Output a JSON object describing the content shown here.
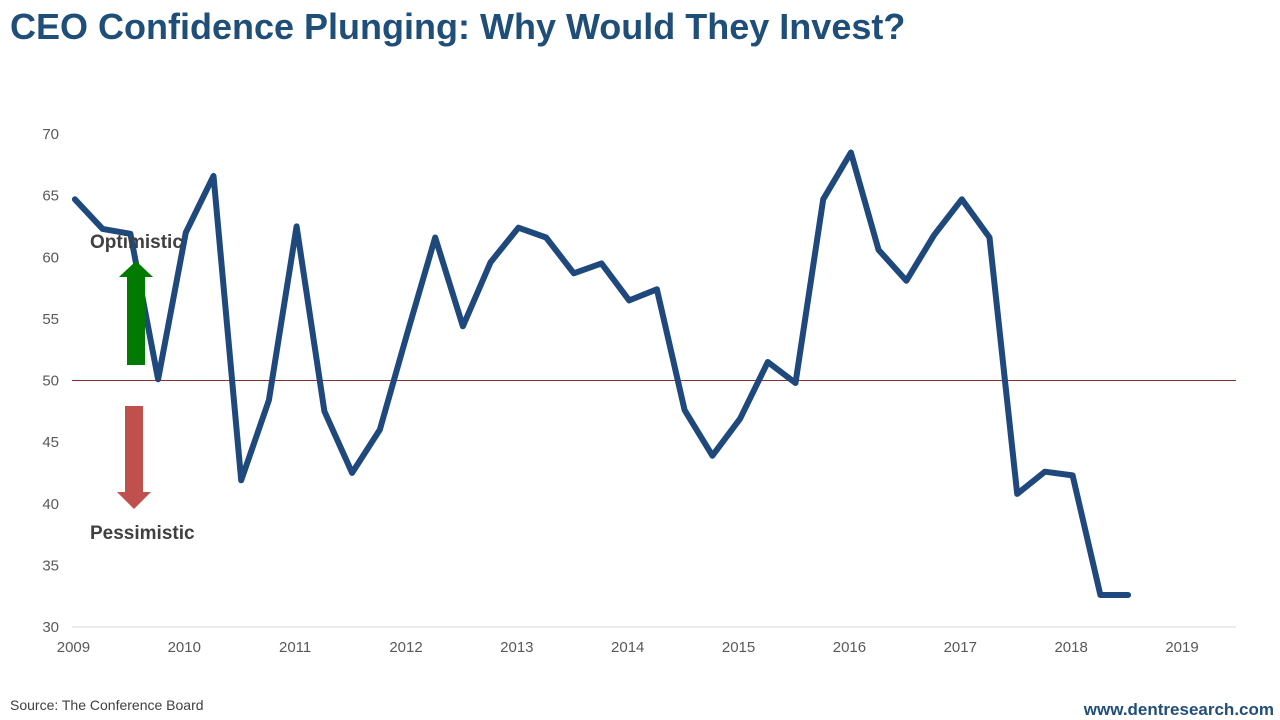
{
  "title": "CEO Confidence Plunging: Why Would They Invest?",
  "source": "Source: The Conference Board",
  "website": "www.dentresearch.com",
  "colors": {
    "title": "#1f4e79",
    "line": "#1f497d",
    "reference_line": "#8b2e2e",
    "up_arrow": "#007a00",
    "down_arrow": "#c0504d"
  },
  "chart_data": {
    "type": "line",
    "title": "CEO Confidence Plunging: Why Would They Invest?",
    "xlabel": "",
    "ylabel": "",
    "categories": [
      "2009",
      "2010",
      "2011",
      "2012",
      "2013",
      "2014",
      "2015",
      "2016",
      "2017",
      "2018",
      "2019"
    ],
    "xlim": [
      2009,
      2019.5
    ],
    "ylim": [
      30,
      70
    ],
    "yticks": [
      30,
      35,
      40,
      45,
      50,
      55,
      60,
      65,
      70
    ],
    "reference_line": 50,
    "grid": false,
    "series": [
      {
        "name": "CEO Confidence",
        "x": [
          2009.5,
          2009.75,
          2010.0,
          2010.25,
          2010.5,
          2010.75,
          2011.0,
          2011.25,
          2011.5,
          2011.75,
          2012.0,
          2012.25,
          2012.5,
          2012.75,
          2013.0,
          2013.25,
          2013.5,
          2013.75,
          2014.0,
          2014.25,
          2014.5,
          2014.75,
          2015.0,
          2015.25,
          2015.5,
          2015.75,
          2016.0,
          2016.25,
          2016.5,
          2016.75,
          2017.0,
          2017.25,
          2017.5,
          2017.75,
          2018.0,
          2018.25,
          2018.5,
          2018.75,
          2019.0
        ],
        "y": [
          64.7,
          62.3,
          61.9,
          50.1,
          62.0,
          66.6,
          41.9,
          48.4,
          62.5,
          47.5,
          42.5,
          46.0,
          53.9,
          61.6,
          54.4,
          59.6,
          62.4,
          61.6,
          58.7,
          59.5,
          56.5,
          57.4,
          47.6,
          43.9,
          46.9,
          51.5,
          49.8,
          64.7,
          68.5,
          60.6,
          58.1,
          61.8,
          64.7,
          61.6,
          40.8,
          42.6,
          42.3,
          32.6,
          32.6
        ]
      }
    ],
    "annotations": {
      "optimistic": "Optimistic",
      "pessimistic": "Pessimistic"
    }
  }
}
